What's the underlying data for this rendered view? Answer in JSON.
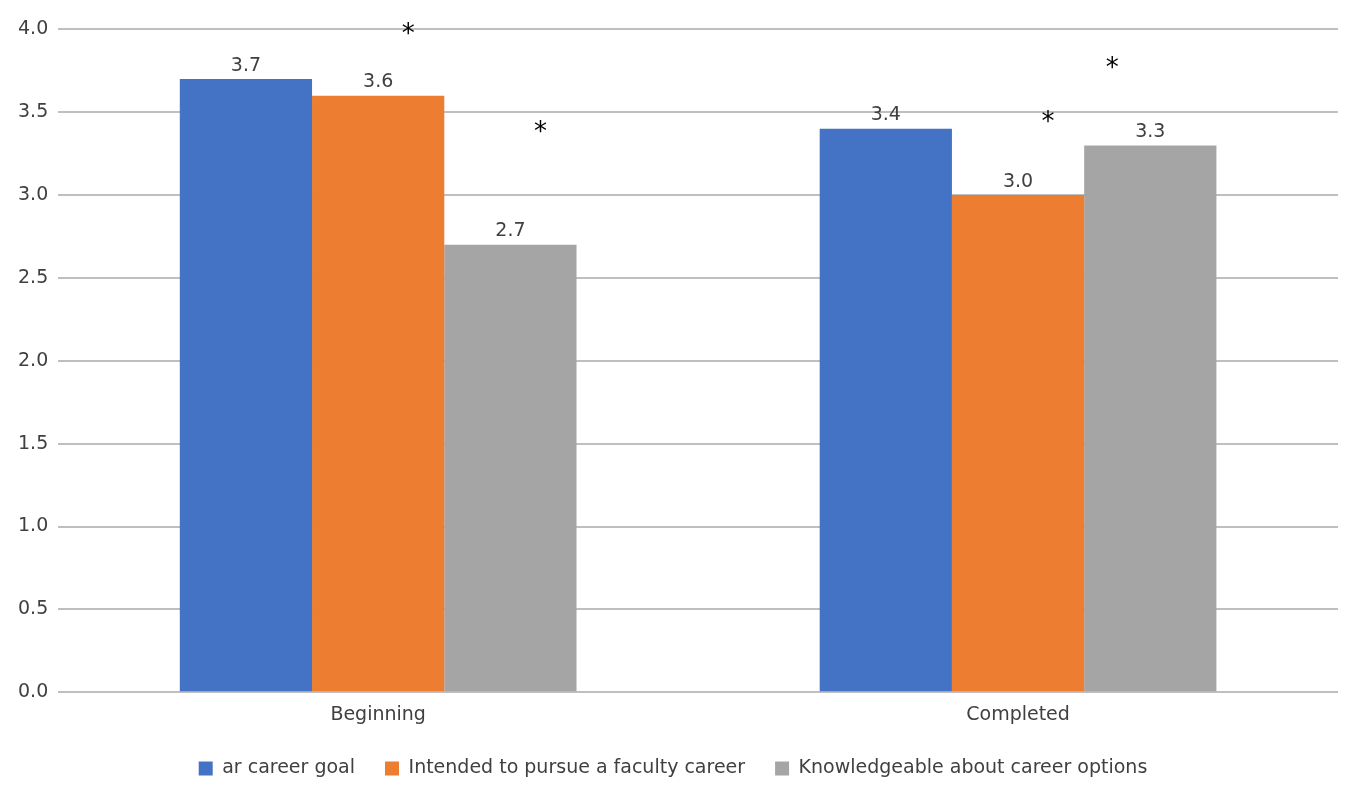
{
  "chart_data": {
    "type": "bar",
    "categories": [
      "Beginning",
      "Completed"
    ],
    "series": [
      {
        "name": "ar career goal",
        "color": "#4472c4",
        "values": [
          3.7,
          3.4
        ],
        "value_labels": [
          "3.7",
          "3.4"
        ]
      },
      {
        "name": "Intended to pursue a faculty career",
        "color": "#ed7d31",
        "values": [
          3.6,
          3.0
        ],
        "value_labels": [
          "3.6",
          "3.0"
        ]
      },
      {
        "name": "Knowledgeable about career options",
        "color": "#a5a5a5",
        "values": [
          2.7,
          3.3
        ],
        "value_labels": [
          "2.7",
          "3.3"
        ]
      }
    ],
    "ylim": [
      0,
      4
    ],
    "yticks": [
      {
        "value": 0,
        "label": "0.0"
      },
      {
        "value": 0.5,
        "label": "0.5"
      },
      {
        "value": 1,
        "label": "1.0"
      },
      {
        "value": 1.5,
        "label": "1.5"
      },
      {
        "value": 2,
        "label": "2.0"
      },
      {
        "value": 2.5,
        "label": "2.5"
      },
      {
        "value": 3,
        "label": "3.0"
      },
      {
        "value": 3.5,
        "label": "3.5"
      },
      {
        "value": 4,
        "label": "4.0"
      }
    ],
    "grid": "y",
    "legend": "bottom",
    "annotations": [
      "*",
      "*",
      "*",
      "*"
    ]
  }
}
